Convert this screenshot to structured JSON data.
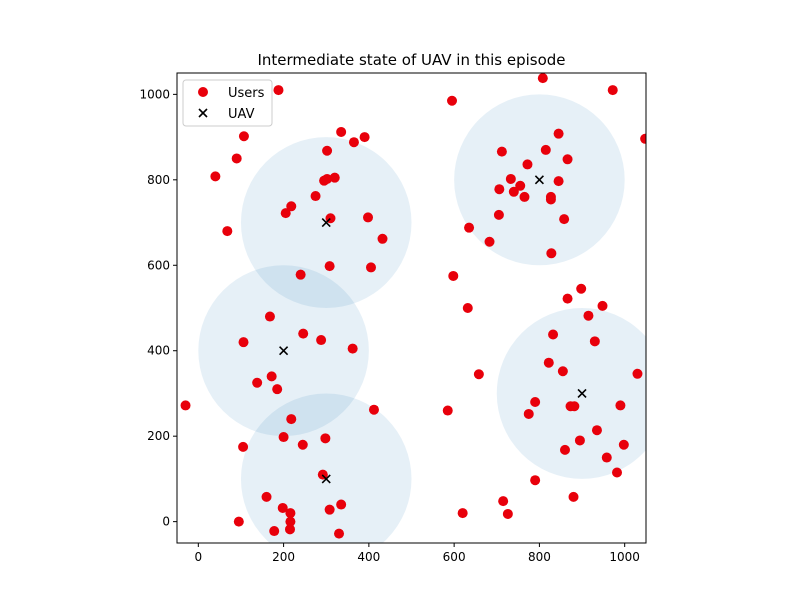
{
  "chart_data": {
    "type": "scatter",
    "title": "Intermediate state of UAV in this episode",
    "xlabel": "",
    "ylabel": "",
    "xlim": [
      -50,
      1050
    ],
    "ylim": [
      -50,
      1050
    ],
    "xticks": [
      0,
      200,
      400,
      600,
      800,
      1000
    ],
    "yticks": [
      0,
      200,
      400,
      600,
      800,
      1000
    ],
    "grid": false,
    "legend": {
      "placement": "top-left",
      "entries": [
        "Users",
        "UAV"
      ]
    },
    "colors": {
      "users": "#e8000b",
      "uav": "#000000",
      "coverage": "#1f77b4"
    },
    "coverage_radius": 200,
    "series": [
      {
        "name": "Users",
        "marker": "circle",
        "points": [
          [
            -30,
            272
          ],
          [
            40,
            808
          ],
          [
            68,
            680
          ],
          [
            90,
            850
          ],
          [
            95,
            0
          ],
          [
            105,
            175
          ],
          [
            106,
            420
          ],
          [
            107,
            902
          ],
          [
            138,
            325
          ],
          [
            160,
            58
          ],
          [
            168,
            480
          ],
          [
            172,
            340
          ],
          [
            178,
            -22
          ],
          [
            185,
            310
          ],
          [
            188,
            1010
          ],
          [
            198,
            32
          ],
          [
            200,
            198
          ],
          [
            205,
            722
          ],
          [
            215,
            -18
          ],
          [
            216,
            0
          ],
          [
            216,
            20
          ],
          [
            218,
            240
          ],
          [
            218,
            738
          ],
          [
            240,
            578
          ],
          [
            245,
            180
          ],
          [
            246,
            440
          ],
          [
            275,
            762
          ],
          [
            288,
            425
          ],
          [
            292,
            110
          ],
          [
            295,
            798
          ],
          [
            298,
            195
          ],
          [
            302,
            802
          ],
          [
            302,
            868
          ],
          [
            308,
            598
          ],
          [
            308,
            28
          ],
          [
            310,
            710
          ],
          [
            320,
            805
          ],
          [
            330,
            -28
          ],
          [
            335,
            40
          ],
          [
            335,
            912
          ],
          [
            362,
            405
          ],
          [
            365,
            888
          ],
          [
            390,
            900
          ],
          [
            398,
            712
          ],
          [
            405,
            595
          ],
          [
            412,
            262
          ],
          [
            432,
            662
          ],
          [
            585,
            260
          ],
          [
            595,
            985
          ],
          [
            598,
            575
          ],
          [
            620,
            20
          ],
          [
            632,
            500
          ],
          [
            635,
            688
          ],
          [
            658,
            345
          ],
          [
            683,
            655
          ],
          [
            705,
            718
          ],
          [
            706,
            778
          ],
          [
            712,
            866
          ],
          [
            715,
            48
          ],
          [
            726,
            18
          ],
          [
            733,
            802
          ],
          [
            740,
            772
          ],
          [
            755,
            786
          ],
          [
            765,
            760
          ],
          [
            772,
            836
          ],
          [
            775,
            252
          ],
          [
            790,
            280
          ],
          [
            790,
            97
          ],
          [
            808,
            1038
          ],
          [
            815,
            870
          ],
          [
            822,
            372
          ],
          [
            827,
            760
          ],
          [
            827,
            754
          ],
          [
            828,
            628
          ],
          [
            832,
            438
          ],
          [
            845,
            908
          ],
          [
            845,
            797
          ],
          [
            855,
            352
          ],
          [
            858,
            708
          ],
          [
            860,
            168
          ],
          [
            866,
            848
          ],
          [
            866,
            522
          ],
          [
            873,
            270
          ],
          [
            880,
            58
          ],
          [
            882,
            270
          ],
          [
            895,
            190
          ],
          [
            898,
            545
          ],
          [
            915,
            482
          ],
          [
            930,
            422
          ],
          [
            935,
            214
          ],
          [
            948,
            505
          ],
          [
            958,
            150
          ],
          [
            972,
            1010
          ],
          [
            982,
            115
          ],
          [
            990,
            272
          ],
          [
            998,
            180
          ],
          [
            1030,
            346
          ],
          [
            1048,
            896
          ]
        ]
      },
      {
        "name": "UAV",
        "marker": "x",
        "points": [
          [
            300,
            700
          ],
          [
            200,
            400
          ],
          [
            800,
            800
          ],
          [
            900,
            300
          ],
          [
            300,
            100
          ]
        ]
      }
    ]
  }
}
